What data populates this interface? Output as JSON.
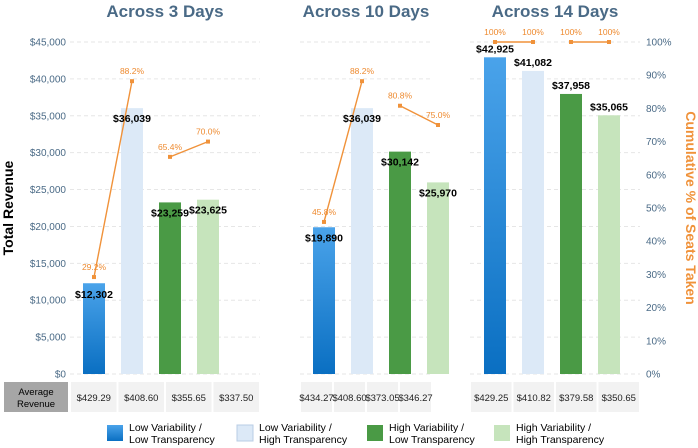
{
  "chart_data": {
    "type": "bar",
    "series_names": [
      "Low Variability / Low Transparency",
      "Low Variability / High Transparency",
      "High Variability / Low Transparency",
      "High Variability / High Transparency"
    ],
    "colors": {
      "low_low": "#1f7fd4",
      "low_high": "#dce9f7",
      "high_low": "#4a9a45",
      "high_high": "#c6e4bc",
      "line": "#f0923a",
      "axis_text": "#4a6a86",
      "avg_header_bg": "#a6a6a6",
      "avg_cell_bg": "#f2f2f2"
    },
    "ylabel_left": "Total Revenue",
    "ylabel_right": "Cumulative % of Seats Taken",
    "left_axis": {
      "min": 0,
      "max": 45000,
      "ticks": [
        "$0",
        "$5,000",
        "$10,000",
        "$15,000",
        "$20,000",
        "$25,000",
        "$30,000",
        "$35,000",
        "$40,000",
        "$45,000"
      ]
    },
    "right_axis": {
      "min": 0,
      "max": 100,
      "ticks": [
        "0%",
        "10%",
        "20%",
        "30%",
        "40%",
        "50%",
        "60%",
        "70%",
        "80%",
        "90%",
        "100%"
      ]
    },
    "avg_header": [
      "Average",
      "Revenue"
    ],
    "legend": [
      {
        "line1": "Low Variability /",
        "line2": "Low Transparency",
        "color_key": "low_low"
      },
      {
        "line1": "Low Variability /",
        "line2": "High Transparency",
        "color_key": "low_high"
      },
      {
        "line1": "High Variability /",
        "line2": "Low Transparency",
        "color_key": "high_low"
      },
      {
        "line1": "High Variability /",
        "line2": "High Transparency",
        "color_key": "high_high"
      }
    ],
    "panels": [
      {
        "title": "Across 3 Days",
        "revenue": [
          12302,
          36039,
          23259,
          23625
        ],
        "revenue_labels": [
          "$12,302",
          "$36,039",
          "$23,259",
          "$23,625"
        ],
        "cumulative_pct": [
          29.2,
          88.2,
          65.4,
          70.0
        ],
        "pct_labels": [
          "29.2%",
          "88.2%",
          "65.4%",
          "70.0%"
        ],
        "avg_revenue": [
          "$429.29",
          "$408.60",
          "$355.65",
          "$337.50"
        ]
      },
      {
        "title": "Across 10 Days",
        "revenue": [
          19890,
          36039,
          30142,
          25970
        ],
        "revenue_labels": [
          "$19,890",
          "$36,039",
          "$30,142",
          "$25,970"
        ],
        "cumulative_pct": [
          45.8,
          88.2,
          80.8,
          75.0
        ],
        "pct_labels": [
          "45.8%",
          "88.2%",
          "80.8%",
          "75.0%"
        ],
        "avg_revenue": [
          "$434.27",
          "$408.60",
          "$373.05",
          "$346.27"
        ]
      },
      {
        "title": "Across 14 Days",
        "revenue": [
          42925,
          41082,
          37958,
          35065
        ],
        "revenue_labels": [
          "$42,925",
          "$41,082",
          "$37,958",
          "$35,065"
        ],
        "cumulative_pct": [
          100,
          100,
          100,
          100
        ],
        "pct_labels": [
          "100%",
          "100%",
          "100%",
          "100%"
        ],
        "avg_revenue": [
          "$429.25",
          "$410.82",
          "$379.58",
          "$350.65"
        ]
      }
    ]
  }
}
